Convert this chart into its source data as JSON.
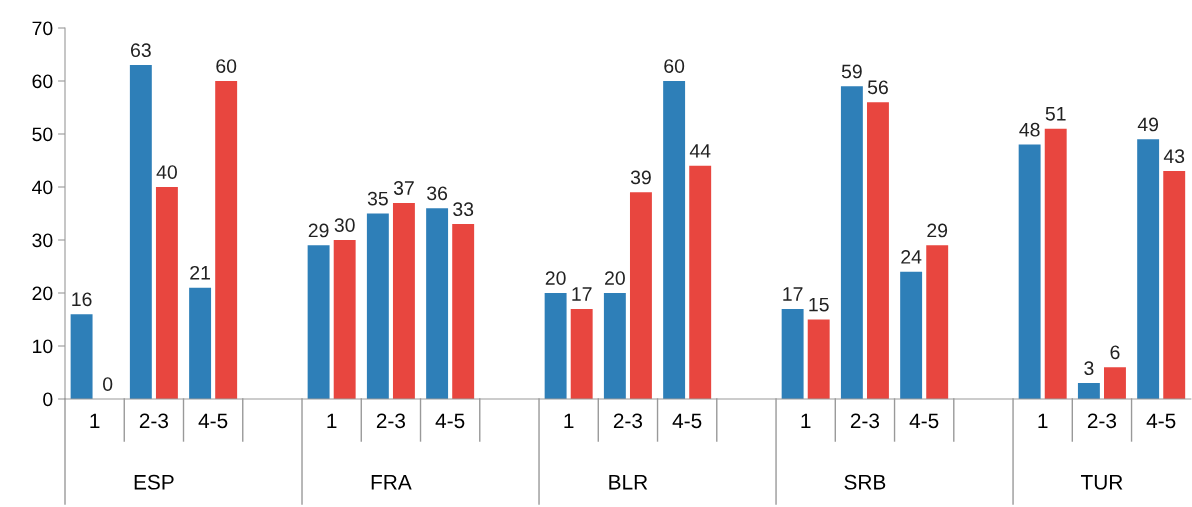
{
  "chart_data": {
    "type": "bar",
    "categories": [
      "1",
      "2-3",
      "4-5",
      null,
      "1",
      "2-3",
      "4-5",
      null,
      "1",
      "2-3",
      "4-5",
      null,
      "1",
      "2-3",
      "4-5",
      null,
      "1",
      "2-3",
      "4-5"
    ],
    "series": [
      {
        "color": "#2e7fb8",
        "values": [
          16,
          63,
          21,
          null,
          29,
          35,
          36,
          null,
          20,
          20,
          60,
          null,
          17,
          59,
          24,
          null,
          48,
          3,
          49
        ]
      },
      {
        "color": "#e8463f",
        "values": [
          0,
          40,
          60,
          null,
          30,
          37,
          33,
          null,
          17,
          39,
          44,
          null,
          15,
          56,
          29,
          null,
          51,
          6,
          43
        ]
      }
    ],
    "annotations": [
      "ESP",
      "FRA",
      "BLR",
      "SRB",
      "TUR"
    ],
    "ylim": [
      0,
      70
    ],
    "yticks": [
      0,
      10,
      20,
      30,
      40,
      50,
      60,
      70
    ],
    "data_labels": true,
    "grid": false
  }
}
